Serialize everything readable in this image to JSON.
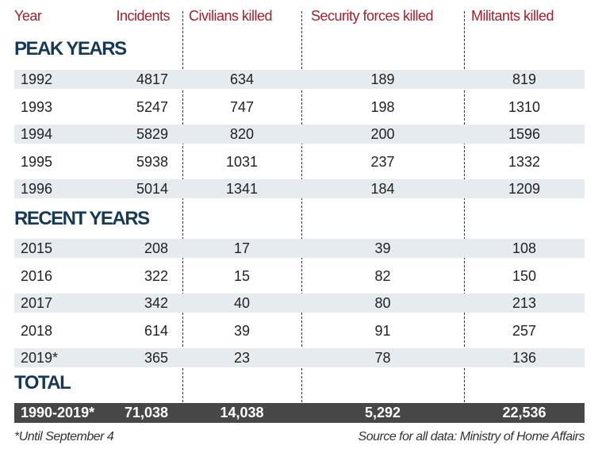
{
  "chart_data": {
    "type": "table",
    "columns": [
      "Year",
      "Incidents",
      "Civilians killed",
      "Security forces killed",
      "Militants killed"
    ],
    "sections": [
      {
        "title": "PEAK YEARS",
        "rows": [
          [
            "1992",
            "4817",
            "634",
            "189",
            "819"
          ],
          [
            "1993",
            "5247",
            "747",
            "198",
            "1310"
          ],
          [
            "1994",
            "5829",
            "820",
            "200",
            "1596"
          ],
          [
            "1995",
            "5938",
            "1031",
            "237",
            "1332"
          ],
          [
            "1996",
            "5014",
            "1341",
            "184",
            "1209"
          ]
        ]
      },
      {
        "title": "RECENT YEARS",
        "rows": [
          [
            "2015",
            "208",
            "17",
            "39",
            "108"
          ],
          [
            "2016",
            "322",
            "15",
            "82",
            "150"
          ],
          [
            "2017",
            "342",
            "40",
            "80",
            "213"
          ],
          [
            "2018",
            "614",
            "39",
            "91",
            "257"
          ],
          [
            "2019*",
            "365",
            "23",
            "78",
            "136"
          ]
        ]
      },
      {
        "title": "TOTAL",
        "rows": [
          [
            "1990-2019*",
            "71,038",
            "14,038",
            "5,292",
            "22,536"
          ]
        ]
      }
    ],
    "footnote": "*Until September 4",
    "source": "Source for all data: Ministry of Home Affairs",
    "colors": {
      "header": "#a3202e",
      "section": "#163a55",
      "row_shade": "#e6ebef",
      "total_bar": "#474747"
    }
  }
}
